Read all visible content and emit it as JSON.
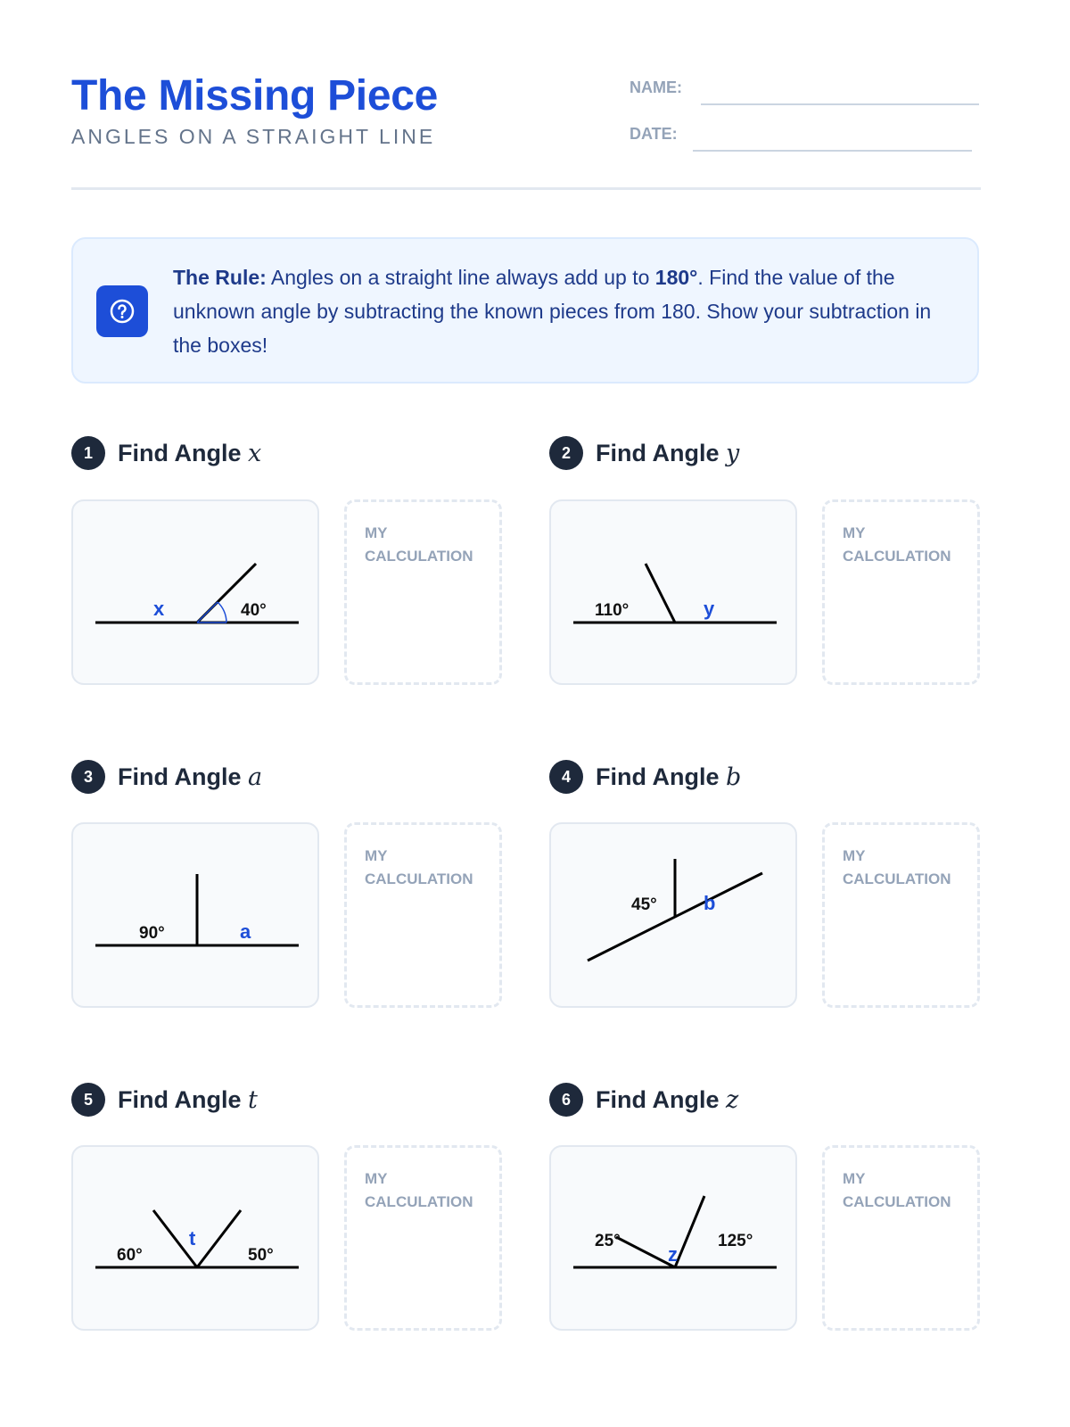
{
  "header": {
    "title": "The Missing Piece",
    "subtitle": "ANGLES ON A STRAIGHT LINE",
    "name_label": "NAME:",
    "date_label": "DATE:"
  },
  "rule": {
    "icon": "question-circle-icon",
    "lead": "The Rule:",
    "text1": " Angles on a straight line always add up to ",
    "bold_value": "180°",
    "text2": ". Find the value of the unknown angle by subtracting the known pieces from 180. Show your subtraction in the boxes!"
  },
  "colors": {
    "accent": "#1d4ed8",
    "dark": "#1e293b",
    "muted": "#94a3b8"
  },
  "problems": [
    {
      "number": "1",
      "title": "Find Angle",
      "variable": "x",
      "known": [
        "40°"
      ],
      "unknown": "x",
      "calc_label": "MY CALCULATION"
    },
    {
      "number": "2",
      "title": "Find Angle",
      "variable": "y",
      "known": [
        "110°"
      ],
      "unknown": "y",
      "calc_label": "MY CALCULATION"
    },
    {
      "number": "3",
      "title": "Find Angle",
      "variable": "a",
      "known": [
        "90°"
      ],
      "unknown": "a",
      "calc_label": "MY CALCULATION"
    },
    {
      "number": "4",
      "title": "Find Angle",
      "variable": "b",
      "known": [
        "45°"
      ],
      "unknown": "b",
      "calc_label": "MY CALCULATION"
    },
    {
      "number": "5",
      "title": "Find Angle",
      "variable": "t",
      "known": [
        "60°",
        "50°"
      ],
      "unknown": "t",
      "calc_label": "MY CALCULATION"
    },
    {
      "number": "6",
      "title": "Find Angle",
      "variable": "z",
      "known": [
        "25°",
        "125°"
      ],
      "unknown": "z",
      "calc_label": "MY CALCULATION"
    }
  ]
}
